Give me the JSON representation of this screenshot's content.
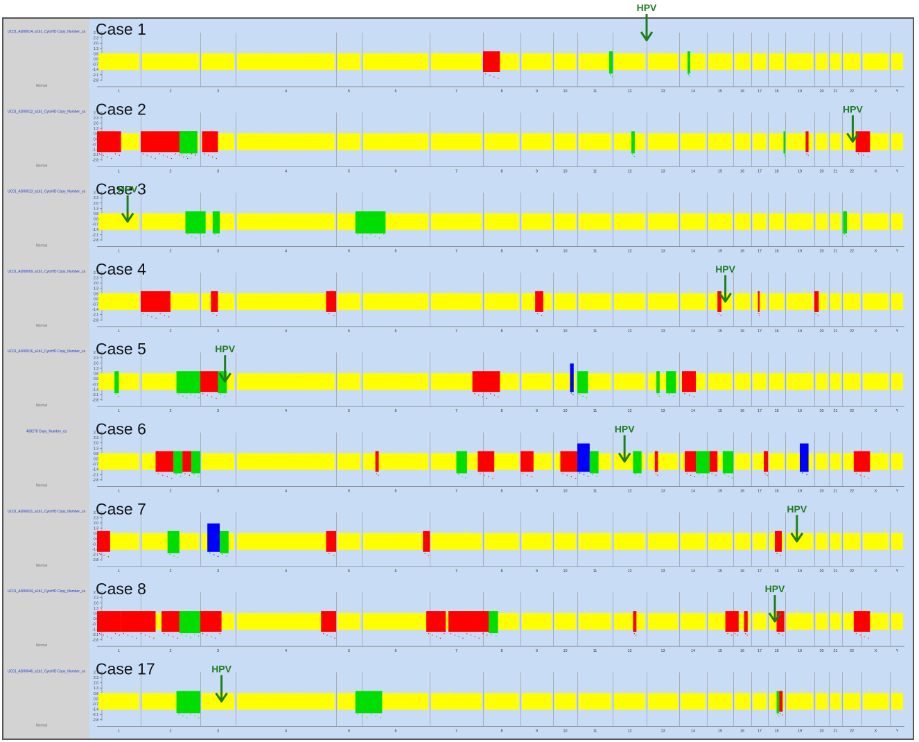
{
  "figure": {
    "colors": {
      "background": "#c9dcf6",
      "sidebar": "#d3d3d3",
      "normal": "#ffff00",
      "gain": "#ff0000",
      "loss": "#00dd00",
      "high": "#0000ff",
      "arrow": "#1e7d1e",
      "chrom_divider": "#9a9a9a"
    },
    "chromosome_labels": [
      "1",
      "2",
      "3",
      "4",
      "5",
      "6",
      "7",
      "8",
      "9",
      "10",
      "11",
      "12",
      "13",
      "14",
      "15",
      "16",
      "17",
      "18",
      "19",
      "20",
      "21",
      "22",
      "X",
      "Y"
    ],
    "y_ticks": [
      "2.7",
      "2.3",
      "2.0",
      "1.3",
      "0.6",
      "0.0",
      "-0.7",
      "-1.4",
      "-2.1",
      "-2.8"
    ],
    "arrow_label": "HPV"
  },
  "chart_data": {
    "type": "heatmap",
    "description": "Genome-wide copy-number profiles; colored blocks mark segments along chromosomes 1-22, X, Y. Positions expressed in chromosome units (chromosome index 1-24 with fractional position within chromosome).",
    "categories": [
      "1",
      "2",
      "3",
      "4",
      "5",
      "6",
      "7",
      "8",
      "9",
      "10",
      "11",
      "12",
      "13",
      "14",
      "15",
      "16",
      "17",
      "18",
      "19",
      "20",
      "21",
      "22",
      "X",
      "Y"
    ],
    "series": [
      {
        "name": "Case 1",
        "sidebar_text": "UC01_AD00014_a1b1_CytoHD Copy_Number_ca",
        "hpv_chromosome": 13.0,
        "segments": [
          {
            "status": "gain",
            "start": 8.0,
            "end": 8.45
          },
          {
            "status": "loss",
            "start": 11.9,
            "end": 12.0
          },
          {
            "status": "loss",
            "start": 14.3,
            "end": 14.4
          }
        ]
      },
      {
        "name": "Case 2",
        "sidebar_text": "UC01_AD00012_a1b1_CytoHD Copy_Number_ca",
        "hpv_chromosome": 22.55,
        "segments": [
          {
            "status": "gain",
            "start": 1.0,
            "end": 1.55
          },
          {
            "status": "gain",
            "start": 2.0,
            "end": 2.95
          },
          {
            "status": "loss",
            "start": 2.65,
            "end": 2.95
          },
          {
            "status": "gain",
            "start": 3.05,
            "end": 3.5
          },
          {
            "status": "loss",
            "start": 12.55,
            "end": 12.65
          },
          {
            "status": "loss",
            "start": 18.9,
            "end": 19.0
          },
          {
            "status": "gain",
            "start": 19.7,
            "end": 19.8
          },
          {
            "status": "gain",
            "start": 22.7,
            "end": 23.3
          }
        ]
      },
      {
        "name": "Case 3",
        "sidebar_text": "UC01_AD00013_a1b1_CytoHD Copy_Number_ca",
        "hpv_chromosome": 1.7,
        "segments": [
          {
            "status": "loss",
            "start": 2.75,
            "end": 3.15
          },
          {
            "status": "loss",
            "start": 3.35,
            "end": 3.55
          },
          {
            "status": "loss",
            "start": 5.75,
            "end": 6.35
          },
          {
            "status": "loss",
            "start": 22.05,
            "end": 22.25
          }
        ]
      },
      {
        "name": "Case 4",
        "sidebar_text": "UC01_AD00009_a1b1_CytoHD Copy_Number_ca",
        "hpv_chromosome": 15.7,
        "segments": [
          {
            "status": "gain",
            "start": 2.0,
            "end": 2.5
          },
          {
            "status": "gain",
            "start": 3.3,
            "end": 3.5
          },
          {
            "status": "gain",
            "start": 4.9,
            "end": 5.0
          },
          {
            "status": "gain",
            "start": 9.45,
            "end": 9.7
          },
          {
            "status": "gain",
            "start": 15.4,
            "end": 15.55
          },
          {
            "status": "gain",
            "start": 17.4,
            "end": 17.5
          },
          {
            "status": "gain",
            "start": 20.0,
            "end": 20.3
          }
        ]
      },
      {
        "name": "Case 5",
        "sidebar_text": "UC01_AD00016_a1b1_CytoHD Copy_Number_ca",
        "hpv_chromosome": 3.7,
        "segments": [
          {
            "status": "loss",
            "start": 1.4,
            "end": 1.5
          },
          {
            "status": "loss",
            "start": 2.6,
            "end": 3.0
          },
          {
            "status": "gain",
            "start": 3.0,
            "end": 3.5
          },
          {
            "status": "loss",
            "start": 3.5,
            "end": 3.75
          },
          {
            "status": "gain",
            "start": 7.8,
            "end": 8.45
          },
          {
            "status": "high",
            "start": 10.7,
            "end": 10.85
          },
          {
            "status": "loss",
            "start": 11.0,
            "end": 11.3
          },
          {
            "status": "loss",
            "start": 13.3,
            "end": 13.4
          },
          {
            "status": "loss",
            "start": 13.6,
            "end": 13.9
          },
          {
            "status": "gain",
            "start": 14.1,
            "end": 14.6
          }
        ]
      },
      {
        "name": "Case 6",
        "sidebar_text": "408278 Copy_Number_ca",
        "hpv_chromosome": 12.35,
        "segments": [
          {
            "status": "gain",
            "start": 2.25,
            "end": 2.55
          },
          {
            "status": "loss",
            "start": 2.55,
            "end": 2.7
          },
          {
            "status": "gain",
            "start": 2.7,
            "end": 2.85
          },
          {
            "status": "loss",
            "start": 2.85,
            "end": 3.0
          },
          {
            "status": "gain",
            "start": 6.2,
            "end": 6.25
          },
          {
            "status": "loss",
            "start": 7.5,
            "end": 7.7
          },
          {
            "status": "gain",
            "start": 7.9,
            "end": 8.3
          },
          {
            "status": "gain",
            "start": 9.0,
            "end": 9.4
          },
          {
            "status": "gain",
            "start": 10.3,
            "end": 11.0
          },
          {
            "status": "high",
            "start": 11.0,
            "end": 11.35
          },
          {
            "status": "loss",
            "start": 11.35,
            "end": 11.6
          },
          {
            "status": "loss",
            "start": 12.6,
            "end": 12.85
          },
          {
            "status": "gain",
            "start": 13.25,
            "end": 13.35
          },
          {
            "status": "gain",
            "start": 14.2,
            "end": 14.6
          },
          {
            "status": "loss",
            "start": 14.6,
            "end": 15.1
          },
          {
            "status": "gain",
            "start": 15.1,
            "end": 15.4
          },
          {
            "status": "loss",
            "start": 15.6,
            "end": 16.0
          },
          {
            "status": "gain",
            "start": 17.75,
            "end": 18.0
          },
          {
            "status": "high",
            "start": 19.5,
            "end": 19.8
          },
          {
            "status": "gain",
            "start": 22.6,
            "end": 23.3
          }
        ]
      },
      {
        "name": "Case 7",
        "sidebar_text": "UC01_AD00021_a1b1_CytoHD Copy_Number_ca",
        "hpv_chromosome": 19.4,
        "segments": [
          {
            "status": "gain",
            "start": 1.0,
            "end": 1.3
          },
          {
            "status": "loss",
            "start": 2.45,
            "end": 2.65
          },
          {
            "status": "high",
            "start": 3.2,
            "end": 3.55
          },
          {
            "status": "loss",
            "start": 3.55,
            "end": 3.8
          },
          {
            "status": "gain",
            "start": 4.9,
            "end": 5.0
          },
          {
            "status": "gain",
            "start": 6.9,
            "end": 7.0
          },
          {
            "status": "gain",
            "start": 18.4,
            "end": 18.8
          }
        ]
      },
      {
        "name": "Case 8",
        "sidebar_text": "UC01_AD00034_a1b1_CytoHD Copy_Number_ca",
        "hpv_chromosome": 18.4,
        "segments": [
          {
            "status": "gain",
            "start": 1.0,
            "end": 1.55
          },
          {
            "status": "gain",
            "start": 1.55,
            "end": 2.25
          },
          {
            "status": "gain",
            "start": 2.35,
            "end": 2.65
          },
          {
            "status": "loss",
            "start": 2.65,
            "end": 3.0
          },
          {
            "status": "gain",
            "start": 3.0,
            "end": 3.6
          },
          {
            "status": "gain",
            "start": 4.85,
            "end": 5.0
          },
          {
            "status": "gain",
            "start": 6.95,
            "end": 7.3
          },
          {
            "status": "gain",
            "start": 7.35,
            "end": 8.15
          },
          {
            "status": "loss",
            "start": 8.15,
            "end": 8.4
          },
          {
            "status": "gain",
            "start": 12.6,
            "end": 12.7
          },
          {
            "status": "gain",
            "start": 15.7,
            "end": 16.0
          },
          {
            "status": "gain",
            "start": 16.0,
            "end": 16.3
          },
          {
            "status": "gain",
            "start": 16.6,
            "end": 16.8
          },
          {
            "status": "gain",
            "start": 18.5,
            "end": 18.95
          },
          {
            "status": "gain",
            "start": 22.6,
            "end": 23.3
          }
        ]
      },
      {
        "name": "Case 17",
        "sidebar_text": "UC01_AD00046_a1b1_CytoHD Copy_Number_ca",
        "hpv_chromosome": 3.6,
        "segments": [
          {
            "status": "loss",
            "start": 2.6,
            "end": 3.0
          },
          {
            "status": "loss",
            "start": 5.75,
            "end": 6.3
          },
          {
            "status": "loss",
            "start": 18.5,
            "end": 18.65
          },
          {
            "status": "gain",
            "start": 18.65,
            "end": 18.85
          }
        ]
      }
    ]
  }
}
